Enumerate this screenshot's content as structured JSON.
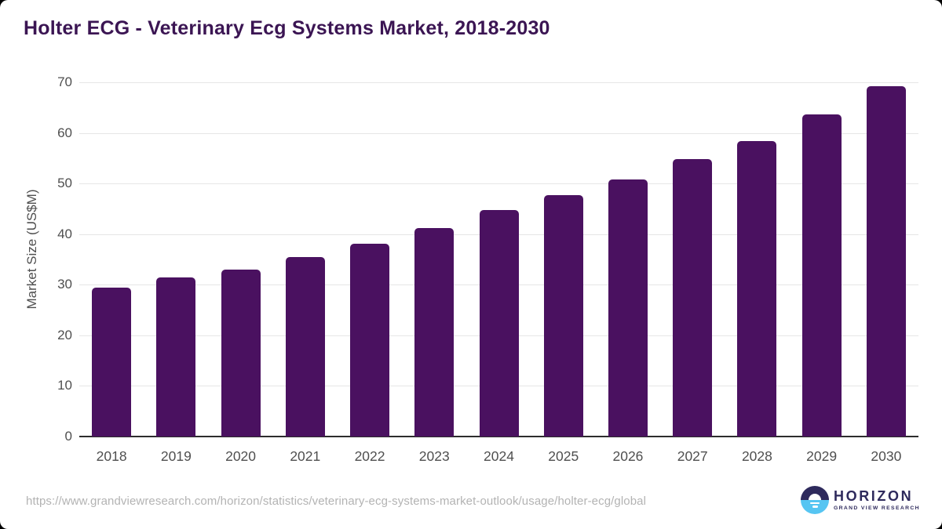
{
  "page": {
    "title": "Holter ECG - Veterinary Ecg Systems Market, 2018-2030"
  },
  "chart_data": {
    "type": "bar",
    "title": "Holter ECG - Veterinary Ecg Systems Market, 2018-2030",
    "categories": [
      "2018",
      "2019",
      "2020",
      "2021",
      "2022",
      "2023",
      "2024",
      "2025",
      "2026",
      "2027",
      "2028",
      "2029",
      "2030"
    ],
    "values": [
      29.4,
      31.4,
      33.0,
      35.4,
      38.1,
      41.2,
      44.7,
      47.7,
      50.8,
      54.8,
      58.4,
      63.6,
      69.2
    ],
    "xlabel": "",
    "ylabel": "Market Size (US$M)",
    "ylim": [
      0,
      70
    ],
    "yticks": [
      0,
      10,
      20,
      30,
      40,
      50,
      60,
      70
    ],
    "grid": "horizontal",
    "legend": "none",
    "bar_color": "#4a1160"
  },
  "footer": {
    "source_url": "https://www.grandviewresearch.com/horizon/statistics/veterinary-ecg-systems-market-outlook/usage/holter-ecg/global",
    "logo": {
      "name": "HORIZON",
      "subtitle": "GRAND VIEW RESEARCH"
    }
  },
  "colors": {
    "background": "#ffffff",
    "accent_purple": "#4a1160",
    "title_purple": "#3b1553",
    "axis_text": "#4f4f4f",
    "gridline": "#e6e6e6",
    "baseline": "#2d2d2d",
    "url_gray": "#b3b3b3",
    "logo_navy": "#2e2a5c",
    "logo_blue": "#56c5f2"
  }
}
